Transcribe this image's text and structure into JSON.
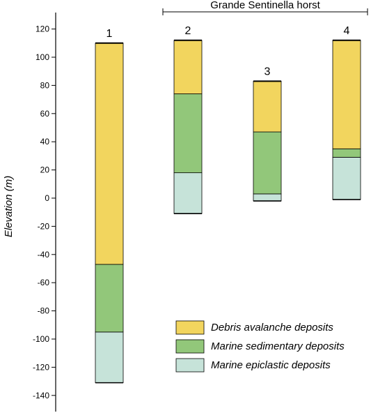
{
  "chart_data": {
    "type": "bar",
    "subtype": "stacked-stratigraphic-columns",
    "ylabel": "Elevation (m)",
    "ylim": [
      -140,
      120
    ],
    "yticks": [
      120,
      100,
      80,
      60,
      40,
      20,
      0,
      -20,
      -40,
      -60,
      -80,
      -100,
      -120,
      -140
    ],
    "grid": false,
    "legend_position": "bottom-right",
    "group_label": "Grande Sentinella horst",
    "group_columns": [
      "2",
      "3",
      "4"
    ],
    "units": [
      {
        "key": "debris",
        "name": "Debris avalanche deposits",
        "color": "#f2d55e"
      },
      {
        "key": "sedimentary",
        "name": "Marine sedimentary deposits",
        "color": "#92c77a"
      },
      {
        "key": "epiclastic",
        "name": "Marine epiclastic deposits",
        "color": "#c6e3d9"
      }
    ],
    "columns": [
      {
        "label": "1",
        "layers": [
          {
            "unit": "epiclastic",
            "bottom": -131,
            "top": -95
          },
          {
            "unit": "sedimentary",
            "bottom": -95,
            "top": -47
          },
          {
            "unit": "debris",
            "bottom": -47,
            "top": 110
          }
        ]
      },
      {
        "label": "2",
        "layers": [
          {
            "unit": "epiclastic",
            "bottom": -11,
            "top": 18
          },
          {
            "unit": "sedimentary",
            "bottom": 18,
            "top": 74
          },
          {
            "unit": "debris",
            "bottom": 74,
            "top": 112
          }
        ]
      },
      {
        "label": "3",
        "layers": [
          {
            "unit": "epiclastic",
            "bottom": -2,
            "top": 3
          },
          {
            "unit": "sedimentary",
            "bottom": 3,
            "top": 47
          },
          {
            "unit": "debris",
            "bottom": 47,
            "top": 83
          }
        ]
      },
      {
        "label": "4",
        "layers": [
          {
            "unit": "epiclastic",
            "bottom": -1,
            "top": 29
          },
          {
            "unit": "sedimentary",
            "bottom": 29,
            "top": 35
          },
          {
            "unit": "debris",
            "bottom": 35,
            "top": 112
          }
        ]
      }
    ]
  }
}
